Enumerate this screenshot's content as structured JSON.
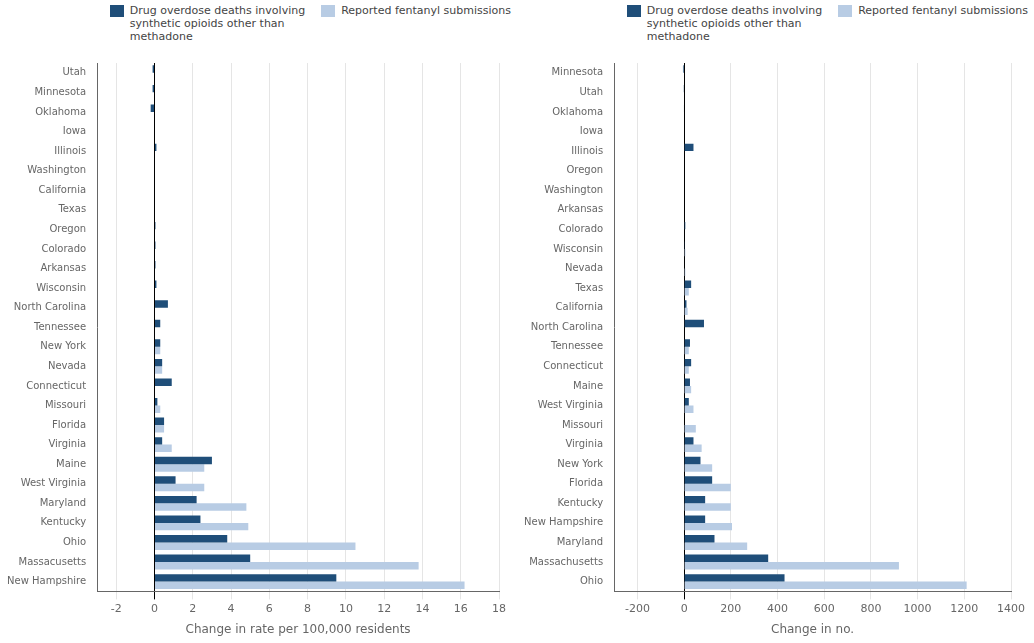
{
  "chart_data": [
    {
      "type": "bar",
      "orientation": "horizontal",
      "categories": [
        "Utah",
        "Minnesota",
        "Oklahoma",
        "Iowa",
        "Illinois",
        "Washington",
        "California",
        "Texas",
        "Oregon",
        "Colorado",
        "Arkansas",
        "Wisconsin",
        "North Carolina",
        "Tennessee",
        "New York",
        "Nevada",
        "Connecticut",
        "Missouri",
        "Florida",
        "Virginia",
        "Maine",
        "West Virginia",
        "Maryland",
        "Kentucky",
        "Ohio",
        "Massacusetts",
        "New Hampshire"
      ],
      "series": [
        {
          "name": "Drug overdose deaths involving\nsynthetic opioids other than\nmethadone",
          "color": "#1f4e79",
          "values": [
            -0.1,
            -0.1,
            -0.2,
            0.0,
            0.1,
            0.0,
            0.0,
            0.0,
            0.05,
            0.05,
            0.05,
            0.1,
            0.7,
            0.3,
            0.3,
            0.4,
            0.9,
            0.15,
            0.5,
            0.4,
            3.0,
            1.1,
            2.2,
            2.4,
            3.8,
            5.0,
            9.5
          ]
        },
        {
          "name": "Reported fentanyl submissions",
          "color": "#b8cce4",
          "values": [
            0.0,
            0.0,
            0.0,
            0.0,
            0.0,
            0.0,
            0.0,
            0.0,
            0.0,
            0.0,
            0.0,
            0.0,
            0.0,
            0.0,
            0.3,
            0.4,
            0.0,
            0.3,
            0.5,
            0.9,
            2.6,
            2.6,
            4.8,
            4.9,
            10.5,
            13.8,
            16.2
          ]
        }
      ],
      "xlabel": "Change in rate per 100,000 residents",
      "xlim": [
        -3,
        18
      ],
      "xticks": [
        -2,
        0,
        2,
        4,
        6,
        8,
        10,
        12,
        14,
        16,
        18
      ],
      "grid": true,
      "legend": "upper right"
    },
    {
      "type": "bar",
      "orientation": "horizontal",
      "categories": [
        "Minnesota",
        "Utah",
        "Oklahoma",
        "Iowa",
        "Illinois",
        "Oregon",
        "Washington",
        "Arkansas",
        "Colorado",
        "Wisconsin",
        "Nevada",
        "Texas",
        "California",
        "North Carolina",
        "Tennessee",
        "Connecticut",
        "Maine",
        "West Virginia",
        "Missouri",
        "Virginia",
        "New York",
        "Florida",
        "Kentucky",
        "New Hampshire",
        "Maryland",
        "Massachusetts",
        "Ohio"
      ],
      "series": [
        {
          "name": "Drug overdose deaths involving\nsynthetic opioids other than\nmethadone",
          "color": "#1f4e79",
          "values": [
            -5,
            -3,
            -2,
            0,
            40,
            0,
            0,
            0,
            5,
            3,
            0,
            30,
            10,
            85,
            25,
            30,
            25,
            20,
            0,
            40,
            70,
            120,
            90,
            90,
            130,
            360,
            430
          ]
        },
        {
          "name": "Reported fentanyl submissions",
          "color": "#b8cce4",
          "values": [
            0,
            0,
            0,
            0,
            0,
            0,
            0,
            0,
            0,
            5,
            5,
            20,
            15,
            0,
            20,
            20,
            30,
            40,
            50,
            75,
            120,
            200,
            200,
            205,
            270,
            920,
            1210
          ]
        }
      ],
      "xlabel": "Change in no.",
      "xlim": [
        -300,
        1400
      ],
      "xticks": [
        -200,
        0,
        200,
        400,
        600,
        800,
        1000,
        1200,
        1400
      ],
      "grid": true,
      "legend": "upper right"
    }
  ]
}
